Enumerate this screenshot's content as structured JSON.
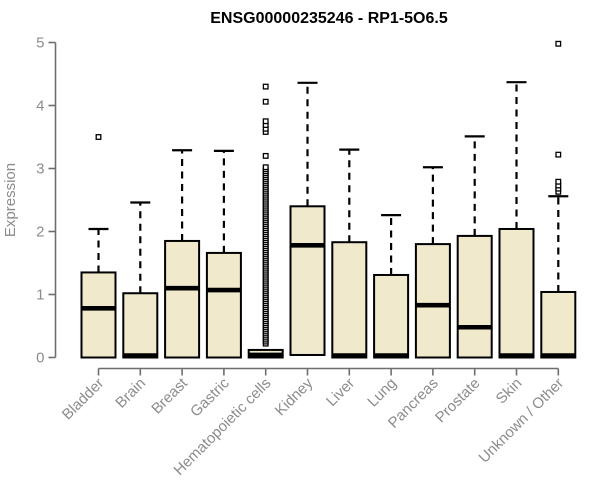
{
  "colors": {
    "box_fill": "#F0E9CC",
    "box_stroke": "#000000",
    "median": "#000000",
    "whisker": "#000000",
    "outlier_stroke": "#000000",
    "outlier_fill": "#ffffff",
    "axis": "#6e6e6e",
    "label": "#8c8c8c",
    "title": "#000000",
    "background": "#ffffff"
  },
  "chart_data": {
    "type": "boxplot",
    "title": "ENSG00000235246 - RP1-5O6.5",
    "xlabel": "",
    "ylabel": "Expression",
    "ylim": [
      0,
      5
    ],
    "yticks": [
      0,
      1,
      2,
      3,
      4,
      5
    ],
    "grid": "off",
    "legend": "none",
    "categories": [
      "Bladder",
      "Brain",
      "Breast",
      "Gastric",
      "Hematopoietic cells",
      "Kidney",
      "Liver",
      "Lung",
      "Pancreas",
      "Prostate",
      "Skin",
      "Unknown / Other"
    ],
    "boxes": [
      {
        "category": "Bladder",
        "q1": 0,
        "median": 0.78,
        "q3": 1.35,
        "whisker_low": 0,
        "whisker_high": 2.04,
        "outliers": [
          3.5
        ]
      },
      {
        "category": "Brain",
        "q1": 0,
        "median": 0.03,
        "q3": 1.02,
        "whisker_low": 0,
        "whisker_high": 2.46,
        "outliers": []
      },
      {
        "category": "Breast",
        "q1": 0,
        "median": 1.1,
        "q3": 1.85,
        "whisker_low": 0,
        "whisker_high": 3.29,
        "outliers": []
      },
      {
        "category": "Gastric",
        "q1": 0,
        "median": 1.07,
        "q3": 1.66,
        "whisker_low": 0,
        "whisker_high": 3.28,
        "outliers": []
      },
      {
        "category": "Hematopoietic cells",
        "q1": 0,
        "median": 0.04,
        "q3": 0.12,
        "whisker_low": 0,
        "whisker_high": null,
        "outliers": [
          3.2,
          3.58,
          3.63,
          3.69,
          3.75,
          4.06,
          4.3
        ],
        "outlier_column": {
          "min": 0.22,
          "max": 3.02,
          "count": 88
        }
      },
      {
        "category": "Kidney",
        "q1": 0.04,
        "median": 1.78,
        "q3": 2.4,
        "whisker_low": 0.04,
        "whisker_high": 4.36,
        "outliers": []
      },
      {
        "category": "Liver",
        "q1": 0,
        "median": 0.03,
        "q3": 1.83,
        "whisker_low": 0,
        "whisker_high": 3.3,
        "outliers": []
      },
      {
        "category": "Lung",
        "q1": 0,
        "median": 0.03,
        "q3": 1.31,
        "whisker_low": 0,
        "whisker_high": 2.26,
        "outliers": []
      },
      {
        "category": "Pancreas",
        "q1": 0,
        "median": 0.83,
        "q3": 1.8,
        "whisker_low": 0,
        "whisker_high": 3.02,
        "outliers": []
      },
      {
        "category": "Prostate",
        "q1": 0,
        "median": 0.48,
        "q3": 1.93,
        "whisker_low": 0,
        "whisker_high": 3.51,
        "outliers": []
      },
      {
        "category": "Skin",
        "q1": 0,
        "median": 0.03,
        "q3": 2.04,
        "whisker_low": 0,
        "whisker_high": 4.37,
        "outliers": []
      },
      {
        "category": "Unknown / Other",
        "q1": 0,
        "median": 0.03,
        "q3": 1.04,
        "whisker_low": 0,
        "whisker_high": 2.56,
        "outliers": [
          2.63,
          2.68,
          2.73,
          2.79,
          3.22,
          4.98
        ]
      }
    ]
  }
}
